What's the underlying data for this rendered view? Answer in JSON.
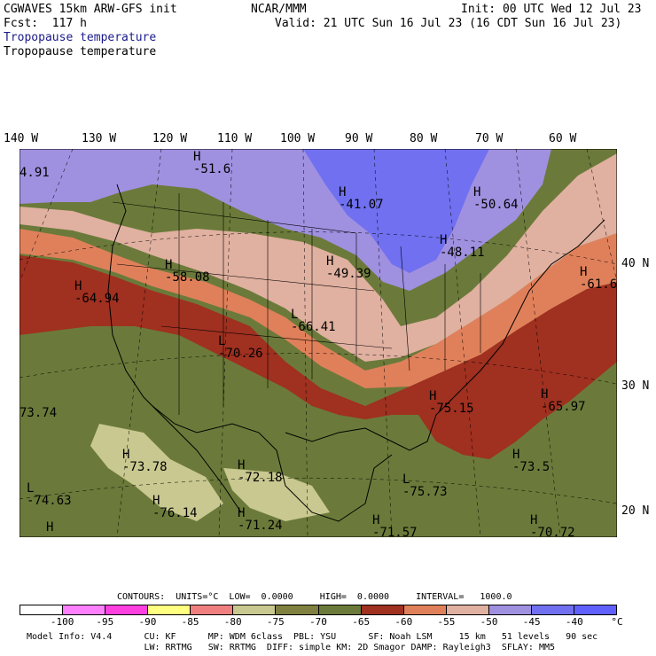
{
  "header": {
    "model": "CGWAVES 15km ARW-GFS init",
    "org": "NCAR/MMM",
    "init": "Init: 00 UTC Wed 12 Jul 23",
    "fcst": "Fcst:  117 h",
    "valid": "Valid: 21 UTC Sun 16 Jul 23 (16 CDT Sun 16 Jul 23)",
    "field1": "Tropopause temperature",
    "field2": "Tropopause temperature"
  },
  "longitudes": [
    "140 W",
    "130 W",
    "120 W",
    "110 W",
    "100 W",
    "90 W",
    "80 W",
    "70 W",
    "60 W"
  ],
  "latitudes": [
    "40 N",
    "30 N",
    "20 N"
  ],
  "map_labels": [
    {
      "hl": "",
      "val": "4.91"
    },
    {
      "hl": "H",
      "val": "-51.6"
    },
    {
      "hl": "H",
      "val": "-41.07"
    },
    {
      "hl": "H",
      "val": "-50.64"
    },
    {
      "hl": "H",
      "val": "-48.11"
    },
    {
      "hl": "H",
      "val": "-58.08"
    },
    {
      "hl": "H",
      "val": "-49.39"
    },
    {
      "hl": "H",
      "val": "-64.94"
    },
    {
      "hl": "L",
      "val": "-66.41"
    },
    {
      "hl": "L",
      "val": "-70.26"
    },
    {
      "hl": "H",
      "val": "-61.6"
    },
    {
      "hl": "H",
      "val": "-75.15"
    },
    {
      "hl": "H",
      "val": "-65.97"
    },
    {
      "hl": "",
      "val": "73.74"
    },
    {
      "hl": "H",
      "val": "-73.78"
    },
    {
      "hl": "H",
      "val": "-72.18"
    },
    {
      "hl": "H",
      "val": "-73.5"
    },
    {
      "hl": "L",
      "val": "-75.73"
    },
    {
      "hl": "L",
      "val": "-74.63"
    },
    {
      "hl": "H",
      "val": "-76.14"
    },
    {
      "hl": "H",
      "val": "-71.24"
    },
    {
      "hl": "H",
      "val": "-71.57"
    },
    {
      "hl": "H",
      "val": "-70.72"
    },
    {
      "hl": "H",
      "val": ""
    }
  ],
  "contours": "CONTOURS:  UNITS=°C  LOW=  0.0000     HIGH=  0.0000     INTERVAL=   1000.0",
  "colorbar": {
    "colors": [
      "#ffffff",
      "#ff80ff",
      "#ff40e0",
      "#ffff80",
      "#f08080",
      "#c8c890",
      "#808040",
      "#6b7a3a",
      "#a03020",
      "#e0805a",
      "#e0b0a0",
      "#a090e0",
      "#7070f0",
      "#6060ff"
    ],
    "labels": [
      "-100",
      "-95",
      "-90",
      "-85",
      "-80",
      "-75",
      "-70",
      "-65",
      "-60",
      "-55",
      "-50",
      "-45",
      "-40",
      "°C"
    ]
  },
  "footer": {
    "line1": "Model Info: V4.4      CU: KF      MP: WDM 6class  PBL: YSU      SF: Noah LSM     15 km   51 levels   90 sec",
    "line2": "                      LW: RRTMG   SW: RRTMG  DIFF: simple KM: 2D Smagor DAMP: Rayleigh3  SFLAY: MM5"
  }
}
